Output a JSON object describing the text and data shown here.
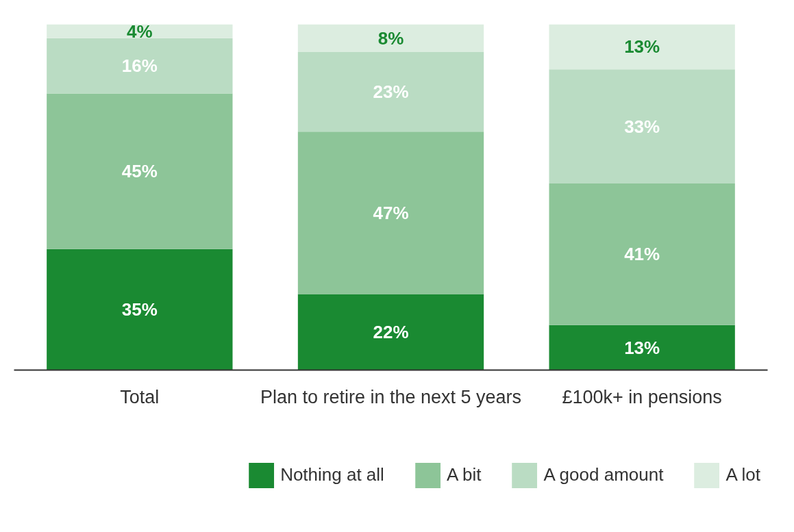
{
  "chart_data": {
    "type": "bar",
    "stacked": true,
    "legend": "bottom",
    "grid": false,
    "categories": [
      "Total",
      "Plan to retire in the next 5 years",
      "£100k+ in pensions"
    ],
    "series": [
      {
        "name": "Nothing at all",
        "color": "#1a8a32",
        "values": [
          35,
          22,
          13
        ],
        "value_labels": [
          "35%",
          "22%",
          "13%"
        ]
      },
      {
        "name": "A bit",
        "color": "#8dc598",
        "values": [
          45,
          47,
          41
        ],
        "value_labels": [
          "45%",
          "47%",
          "41%"
        ]
      },
      {
        "name": "A good amount",
        "color": "#badcc3",
        "values": [
          16,
          23,
          33
        ],
        "value_labels": [
          "16%",
          "23%",
          "33%"
        ]
      },
      {
        "name": "A lot",
        "color": "#dcede0",
        "values": [
          4,
          8,
          13
        ],
        "value_labels": [
          "4%",
          "8%",
          "13%"
        ]
      }
    ]
  }
}
